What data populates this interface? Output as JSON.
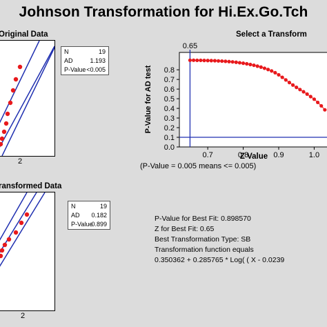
{
  "title": "Johnson Transformation for Hi.Ex.Go.Tch",
  "panels": {
    "original": {
      "subtitle": "Original Data",
      "x_tick": "2",
      "stats": [
        {
          "label": "N",
          "value": "19"
        },
        {
          "label": "AD",
          "value": "1.193"
        },
        {
          "label": "P-Value",
          "value": "<0.005"
        }
      ]
    },
    "transformed": {
      "subtitle": "ransformed Data",
      "x_tick": "2",
      "stats": [
        {
          "label": "N",
          "value": "19"
        },
        {
          "label": "AD",
          "value": "0.182"
        },
        {
          "label": "P-Value",
          "value": "0.899"
        }
      ]
    },
    "select": {
      "subtitle": "Select a Transform",
      "note": "(P-Value = 0.005 means <= 0.005)"
    }
  },
  "chart_data": {
    "type": "line",
    "title": "",
    "xlabel": "Z Value",
    "ylabel": "P-Value for AD test",
    "xlim": [
      0.62,
      1.04
    ],
    "ylim": [
      0,
      0.98
    ],
    "x_ticks": [
      0.7,
      0.8,
      0.9,
      1.0
    ],
    "x_tick_labels": [
      "0.7",
      "0.8",
      "0.9",
      "1.0"
    ],
    "y_ticks": [
      0.0,
      0.1,
      0.2,
      0.3,
      0.4,
      0.5,
      0.6,
      0.7,
      0.8
    ],
    "y_tick_labels": [
      "0.0",
      "0.1",
      "0.2",
      "0.3",
      "0.4",
      "0.5",
      "0.6",
      "0.7",
      "0.8"
    ],
    "reference_lines": {
      "best_z": 0.65,
      "best_z_label": "0.65",
      "p_threshold": 0.1
    },
    "series": [
      {
        "x": [
          0.65,
          0.66,
          0.67,
          0.68,
          0.69,
          0.7,
          0.71,
          0.72,
          0.73,
          0.74,
          0.75,
          0.76,
          0.77,
          0.78,
          0.79,
          0.8,
          0.81,
          0.82,
          0.83,
          0.84,
          0.85,
          0.86,
          0.87,
          0.88,
          0.89,
          0.9,
          0.91,
          0.92,
          0.93,
          0.94,
          0.95,
          0.96,
          0.97,
          0.98,
          0.99,
          1.0,
          1.01,
          1.02,
          1.03
        ],
        "y": [
          0.899,
          0.899,
          0.898,
          0.898,
          0.897,
          0.896,
          0.895,
          0.894,
          0.892,
          0.89,
          0.888,
          0.885,
          0.882,
          0.878,
          0.873,
          0.868,
          0.862,
          0.855,
          0.847,
          0.838,
          0.828,
          0.816,
          0.803,
          0.788,
          0.77,
          0.748,
          0.722,
          0.695,
          0.668,
          0.642,
          0.618,
          0.595,
          0.572,
          0.548,
          0.522,
          0.495,
          0.462,
          0.426,
          0.385
        ]
      }
    ]
  },
  "best_fit": {
    "lines": [
      "P-Value for Best Fit: 0.898570",
      "Z for Best Fit: 0.65",
      "Best Transformation Type: SB",
      "Transformation function equals",
      "0.350362 + 0.285765 * Log( ( X - 0.0239"
    ]
  },
  "colors": {
    "background": "#dcdcdc",
    "points": "#e8191c",
    "fit_lines": "#1f2fb0",
    "ref_lines": "#1f2fb0"
  }
}
